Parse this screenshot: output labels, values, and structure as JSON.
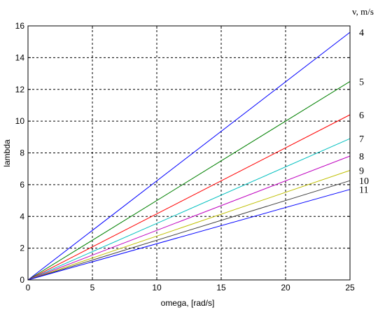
{
  "chart_data": {
    "type": "line",
    "title": "",
    "xlabel": "omega, [rad/s]",
    "ylabel": "lambda",
    "xlim": [
      0,
      25
    ],
    "ylim": [
      0,
      16
    ],
    "xticks": [
      0,
      5,
      10,
      15,
      20,
      25
    ],
    "yticks": [
      0,
      2,
      4,
      6,
      8,
      10,
      12,
      14,
      16
    ],
    "grid": true,
    "legend_title": "v, m/s",
    "series": [
      {
        "name": "4",
        "color": "#0000ff",
        "x": [
          0,
          25
        ],
        "y": [
          0,
          15.6
        ]
      },
      {
        "name": "5",
        "color": "#008000",
        "x": [
          0,
          25
        ],
        "y": [
          0,
          12.5
        ]
      },
      {
        "name": "6",
        "color": "#ff0000",
        "x": [
          0,
          25
        ],
        "y": [
          0,
          10.4
        ]
      },
      {
        "name": "7",
        "color": "#00bfbf",
        "x": [
          0,
          25
        ],
        "y": [
          0,
          8.9
        ]
      },
      {
        "name": "8",
        "color": "#bf00bf",
        "x": [
          0,
          25
        ],
        "y": [
          0,
          7.8
        ]
      },
      {
        "name": "9",
        "color": "#bfbf00",
        "x": [
          0,
          25
        ],
        "y": [
          0,
          6.9
        ]
      },
      {
        "name": "10",
        "color": "#404040",
        "x": [
          0,
          25
        ],
        "y": [
          0,
          6.25
        ]
      },
      {
        "name": "11",
        "color": "#0000ff",
        "x": [
          0,
          25
        ],
        "y": [
          0,
          5.7
        ]
      }
    ]
  }
}
